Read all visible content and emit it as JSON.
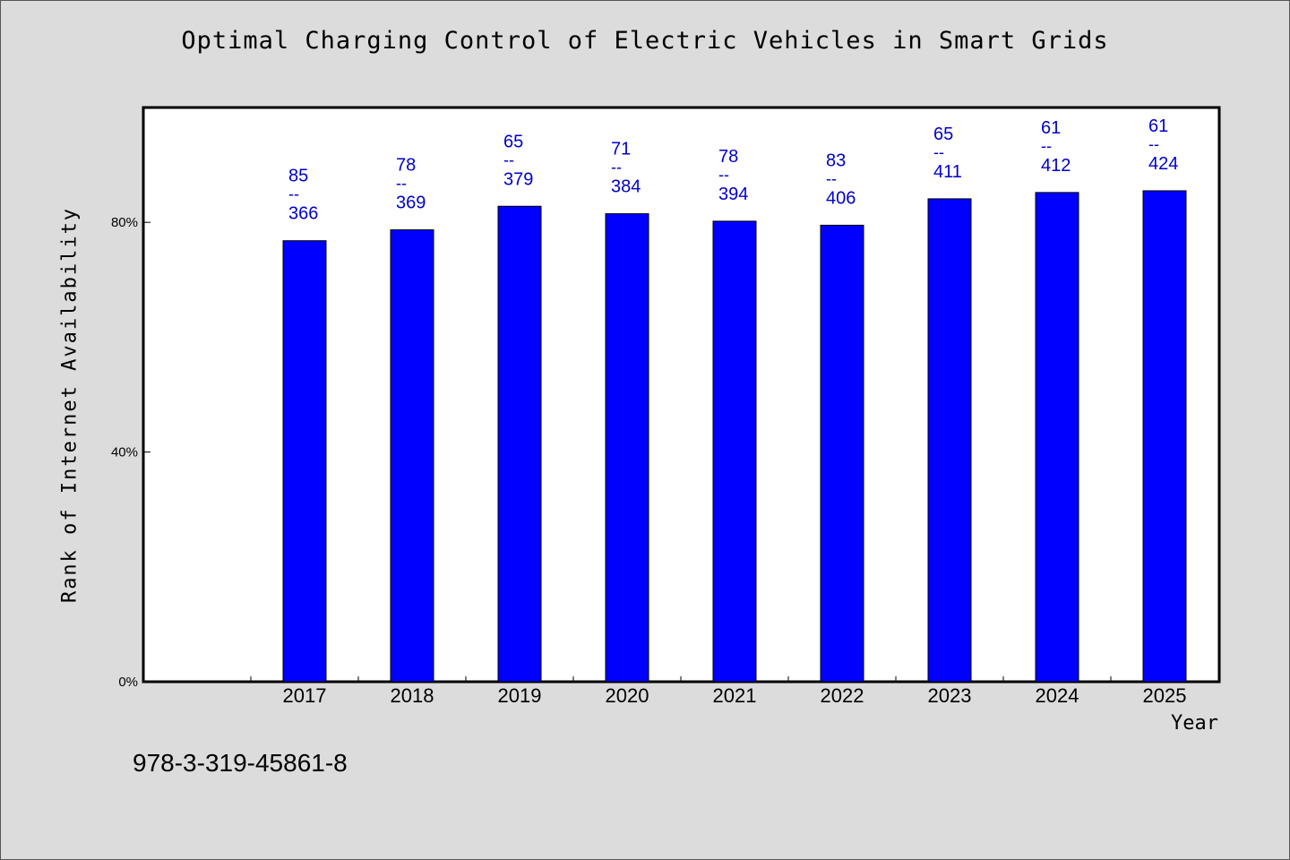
{
  "chart_data": {
    "type": "bar",
    "title": "Optimal Charging Control of Electric Vehicles in Smart Grids",
    "xlabel": "Year",
    "ylabel": "Rank of Internet Availability",
    "categories": [
      "2017",
      "2018",
      "2019",
      "2020",
      "2021",
      "2022",
      "2023",
      "2024",
      "2025"
    ],
    "values": [
      76.8,
      78.7,
      82.8,
      81.5,
      80.2,
      79.5,
      84.1,
      85.2,
      85.5
    ],
    "bar_labels": [
      {
        "top": "85",
        "bottom": "366"
      },
      {
        "top": "78",
        "bottom": "369"
      },
      {
        "top": "65",
        "bottom": "379"
      },
      {
        "top": "71",
        "bottom": "384"
      },
      {
        "top": "78",
        "bottom": "394"
      },
      {
        "top": "83",
        "bottom": "406"
      },
      {
        "top": "65",
        "bottom": "411"
      },
      {
        "top": "61",
        "bottom": "412"
      },
      {
        "top": "61",
        "bottom": "424"
      }
    ],
    "label_separator": "--",
    "yticks": [
      {
        "value": 0,
        "label": "0%"
      },
      {
        "value": 40,
        "label": "40%"
      },
      {
        "value": 80,
        "label": "80%"
      }
    ],
    "ylim": [
      0,
      100
    ],
    "grid": false,
    "colors": {
      "bar": "#0000ff",
      "bar_label": "#0000cc",
      "plot_bg": "#ffffff",
      "page_bg": "#dcdcdc"
    }
  },
  "footnote": "978-3-319-45861-8"
}
